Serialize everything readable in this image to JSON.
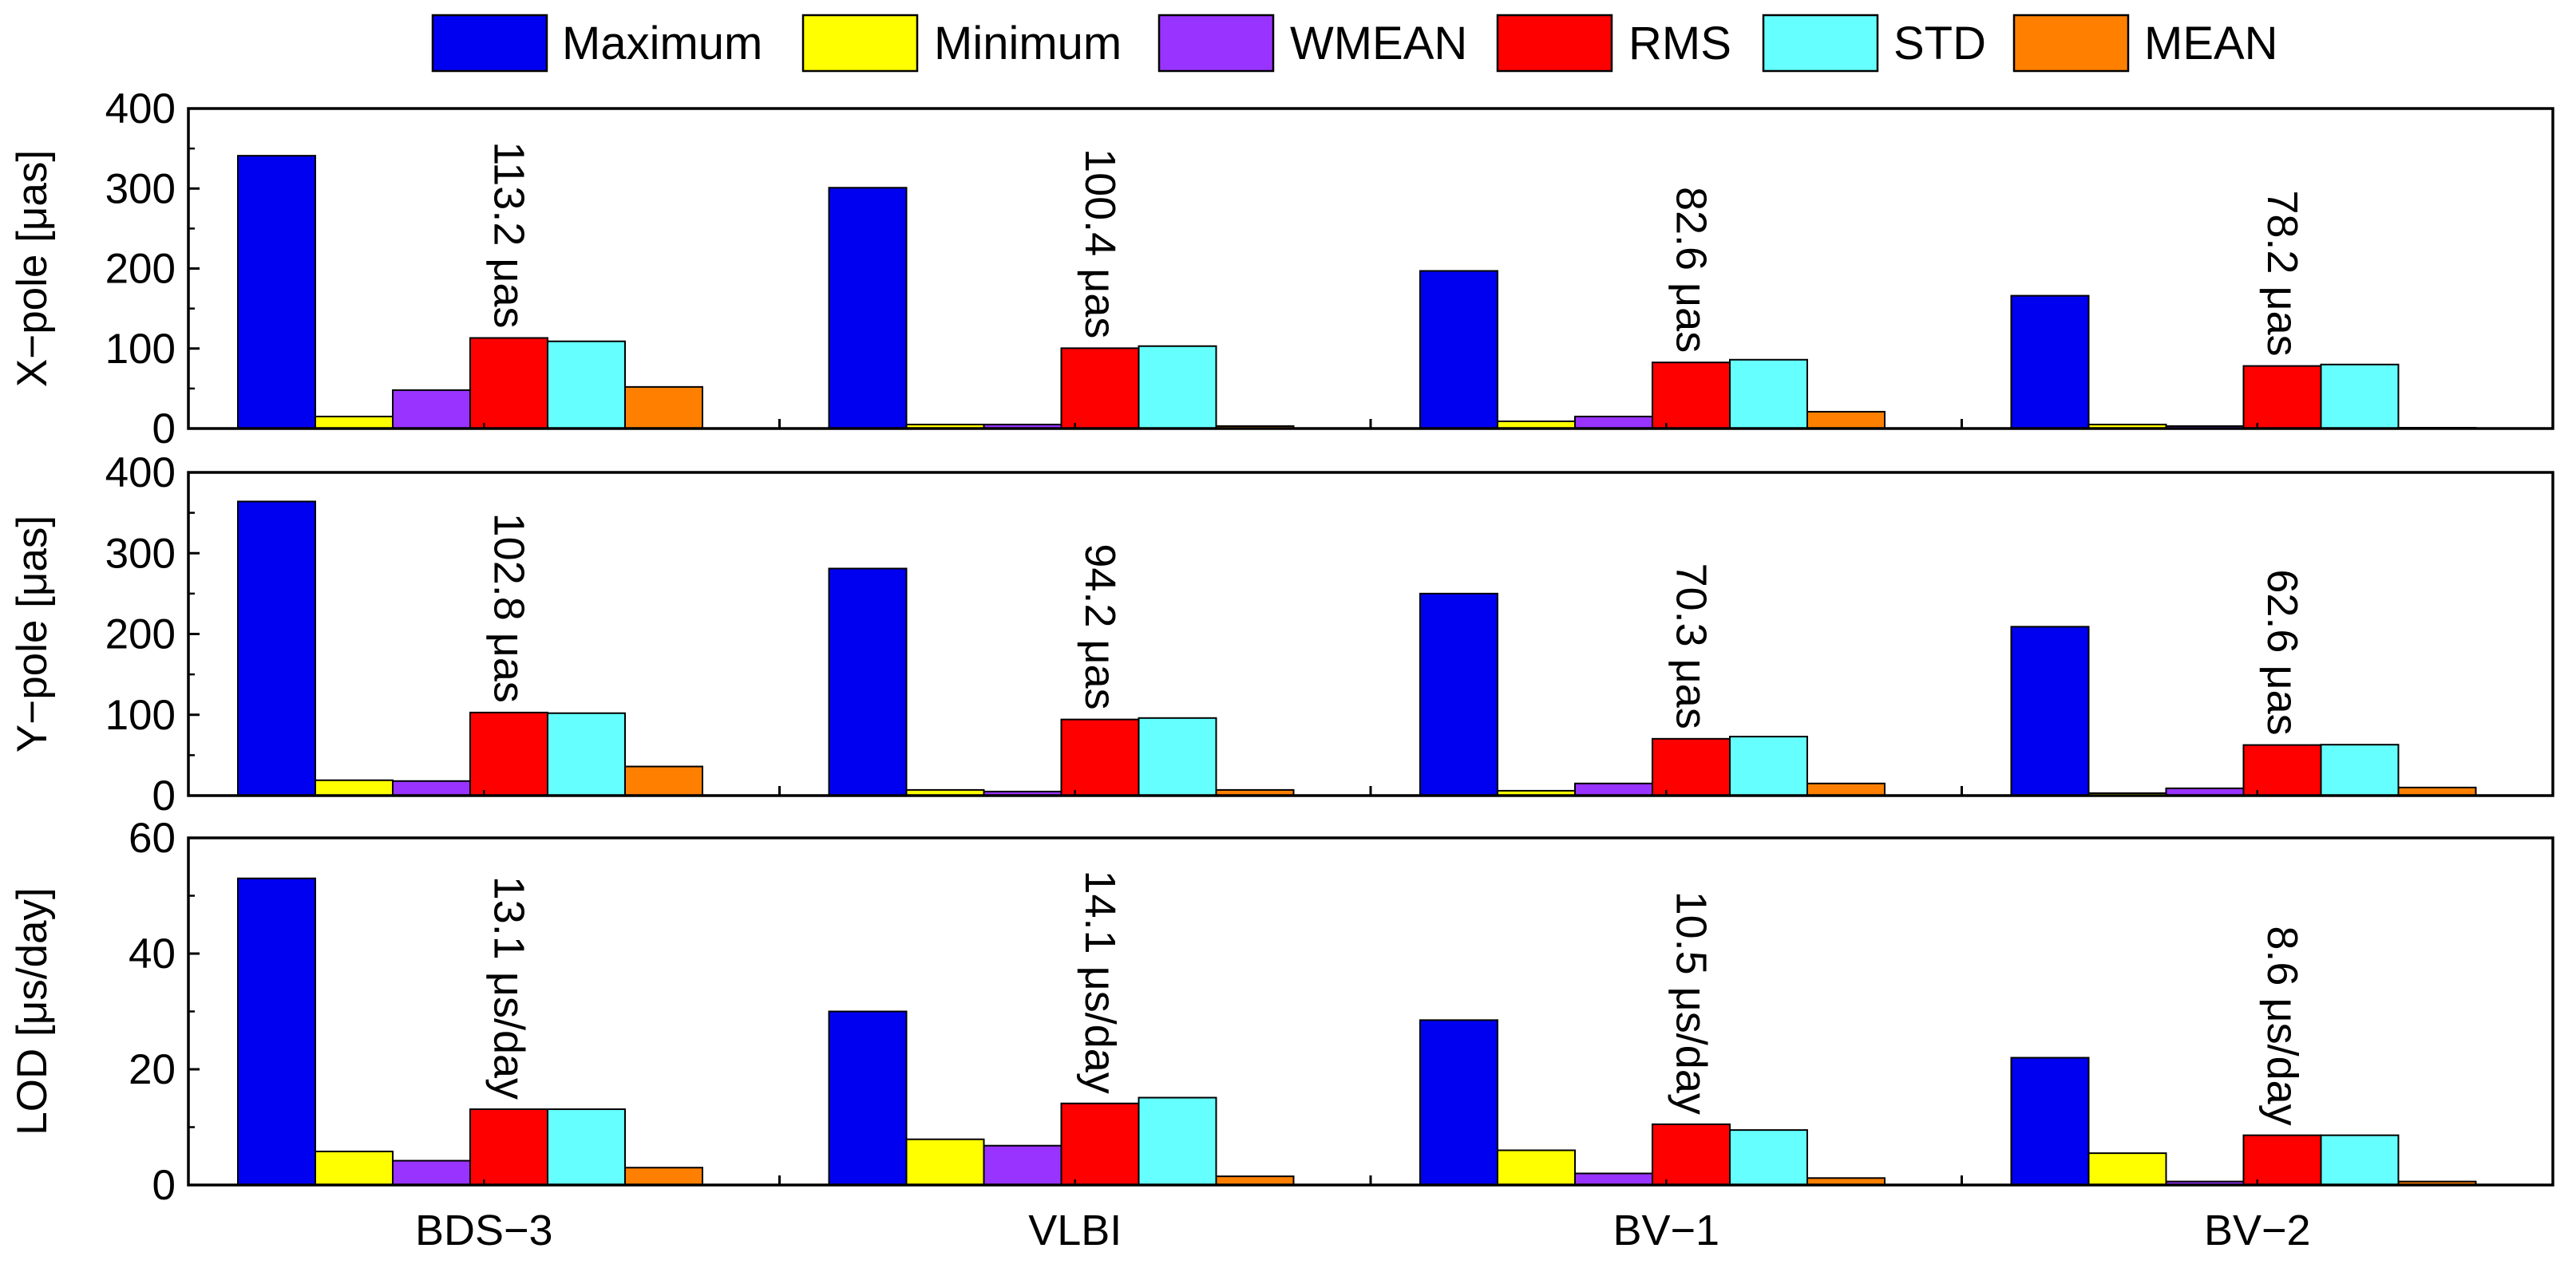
{
  "chart_data": {
    "type": "bar",
    "categories": [
      "BDS−3",
      "VLBI",
      "BV−1",
      "BV−2"
    ],
    "legend": [
      {
        "key": "max",
        "label": "Maximum",
        "color": "#0000F0"
      },
      {
        "key": "min",
        "label": "Minimum",
        "color": "#FFFF00"
      },
      {
        "key": "wmean",
        "label": "WMEAN",
        "color": "#9933FF"
      },
      {
        "key": "rms",
        "label": "RMS",
        "color": "#FF0000"
      },
      {
        "key": "std",
        "label": "STD",
        "color": "#66FFFF"
      },
      {
        "key": "mean",
        "label": "MEAN",
        "color": "#FF8000"
      }
    ],
    "panels": [
      {
        "id": "xpole",
        "ylabel": "X−pole [μas]",
        "ylim": [
          0,
          400
        ],
        "yticks": [
          0,
          100,
          200,
          300,
          400
        ],
        "series": {
          "max": [
            341,
            301,
            197,
            166
          ],
          "min": [
            15,
            5,
            9,
            5
          ],
          "wmean": [
            48,
            5,
            15,
            3
          ],
          "rms": [
            113.2,
            100.4,
            82.6,
            78.2
          ],
          "std": [
            109,
            103,
            86,
            80
          ],
          "mean": [
            52,
            3,
            21,
            1
          ]
        },
        "annotations": [
          "113.2 μas",
          "100.4 μas",
          "82.6 μas",
          "78.2 μas"
        ]
      },
      {
        "id": "ypole",
        "ylabel": "Y−pole [μas]",
        "ylim": [
          0,
          400
        ],
        "yticks": [
          0,
          100,
          200,
          300,
          400
        ],
        "series": {
          "max": [
            364,
            281,
            250,
            209
          ],
          "min": [
            19,
            7,
            6,
            3
          ],
          "wmean": [
            18,
            5,
            15,
            9
          ],
          "rms": [
            102.8,
            94.2,
            70.3,
            62.6
          ],
          "std": [
            102,
            96,
            73,
            63
          ],
          "mean": [
            36,
            7,
            15,
            10
          ]
        },
        "annotations": [
          "102.8 μas",
          "94.2 μas",
          "70.3 μas",
          "62.6 μas"
        ]
      },
      {
        "id": "lod",
        "ylabel": "LOD [μs/day]",
        "ylim": [
          0,
          60
        ],
        "yticks": [
          0,
          20,
          40,
          60
        ],
        "series": {
          "max": [
            53,
            30,
            28.5,
            22
          ],
          "min": [
            5.8,
            7.9,
            6,
            5.5
          ],
          "wmean": [
            4.2,
            6.8,
            2,
            0.6
          ],
          "rms": [
            13.1,
            14.1,
            10.5,
            8.6
          ],
          "std": [
            13.1,
            15.1,
            9.5,
            8.6
          ],
          "mean": [
            3,
            1.5,
            1.2,
            0.6
          ]
        },
        "annotations": [
          "13.1 μs/day",
          "14.1 μs/day",
          "10.5 μs/day",
          "8.6 μs/day"
        ]
      }
    ]
  }
}
